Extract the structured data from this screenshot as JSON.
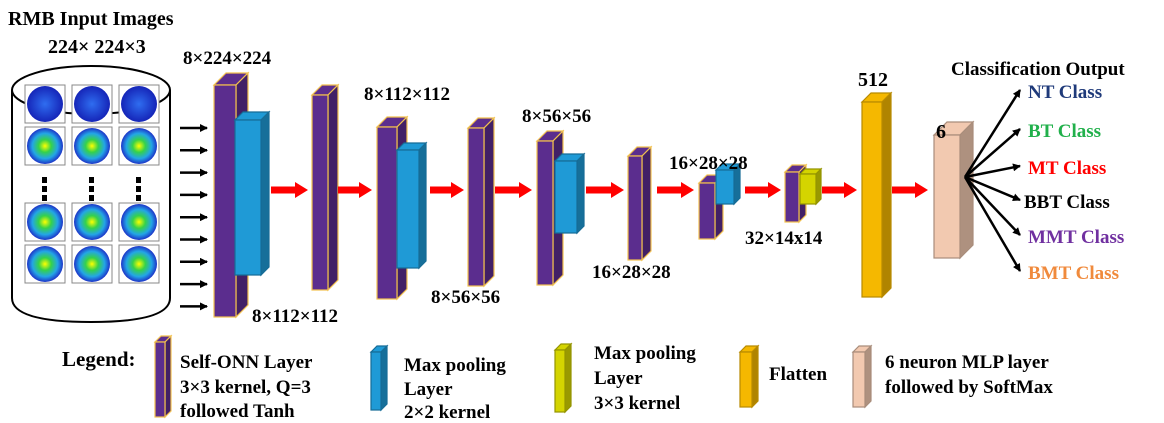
{
  "input": {
    "title": "RMB Input Images",
    "size": "224× 224×3"
  },
  "dims": {
    "l1_top": "8×224×224",
    "l2_bottom": "8×112×112",
    "l3_top": "8×112×112",
    "l4_bottom": "8×56×56",
    "l5_top": "8×56×56",
    "l6_bottom": "16×28×28",
    "l7_top": "16×28×28",
    "l8_bottom": "32×14x14",
    "flatten": "512",
    "mlp": "6"
  },
  "output": {
    "title": "Classification Output",
    "classes": [
      {
        "label": "NT Class",
        "color": "#1f3a7a"
      },
      {
        "label": "BT Class",
        "color": "#21b04b"
      },
      {
        "label": "MT Class",
        "color": "#ff0000"
      },
      {
        "label": "BBT Class",
        "color": "#000000"
      },
      {
        "label": "MMT Class",
        "color": "#7030a0"
      },
      {
        "label": "BMT Class",
        "color": "#f08a3c"
      }
    ]
  },
  "legend": {
    "title": "Legend:",
    "items": [
      {
        "lines": [
          "Self-ONN Layer",
          "3×3 kernel, Q=3",
          "followed Tanh"
        ]
      },
      {
        "lines": [
          "Max pooling",
          "Layer",
          "2×2 kernel"
        ]
      },
      {
        "lines": [
          "Max pooling",
          "Layer",
          "3×3 kernel"
        ]
      },
      {
        "lines": [
          "Flatten"
        ]
      },
      {
        "lines": [
          "6 neuron MLP layer",
          "followed by SoftMax"
        ]
      }
    ]
  },
  "colors": {
    "self_onn": "#5b2d8e",
    "self_onn_edge": "#f2c14e",
    "maxpool2": "#1f9ad6",
    "maxpool3": "#d4d400",
    "flatten": "#f5b800",
    "mlp": "#f2c9b0",
    "arrow": "#ff0000"
  }
}
